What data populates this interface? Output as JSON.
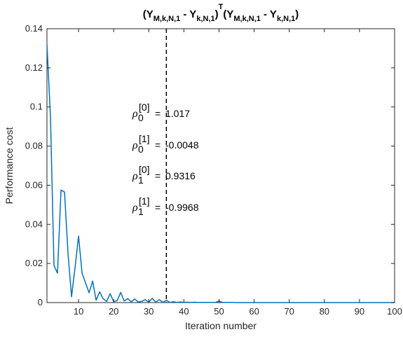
{
  "chart_data": {
    "type": "line",
    "title_parts": {
      "open": "(Y",
      "sub1": "M,k,N,1",
      "minus1": " - Y",
      "sub2": "k,N,1",
      "close1": ")",
      "sup": "T",
      "open2": "(Y",
      "sub3": "M,k,N,1",
      "minus2": " - Y",
      "sub4": "k,N,1",
      "close2": ")"
    },
    "xlabel": "Iteration number",
    "ylabel": "Performance cost",
    "xlim": [
      1,
      100
    ],
    "ylim": [
      0,
      0.14
    ],
    "xticks": [
      10,
      20,
      30,
      40,
      50,
      60,
      70,
      80,
      90,
      100
    ],
    "yticks": [
      0,
      0.02,
      0.04,
      0.06,
      0.08,
      0.1,
      0.12,
      0.14
    ],
    "ytick_labels": [
      "0",
      "0.02",
      "0.04",
      "0.06",
      "0.08",
      "0.1",
      "0.12",
      "0.14"
    ],
    "grid": false,
    "line_color": "#0072BD",
    "vline": {
      "x": 35,
      "style": "dashed",
      "color": "#000000"
    },
    "annotations": [
      {
        "sym": "ρ",
        "sub": "0",
        "sup": "[0]",
        "eq": "=",
        "value": "1.017"
      },
      {
        "sym": "ρ",
        "sub": "0",
        "sup": "[1]",
        "eq": "=",
        "value": "-0.0048"
      },
      {
        "sym": "ρ",
        "sub": "1",
        "sup": "[0]",
        "eq": "=",
        "value": "0.9316"
      },
      {
        "sym": "ρ",
        "sub": "1",
        "sup": "[1]",
        "eq": "=",
        "value": "-0.9968"
      }
    ],
    "series": [
      {
        "x": [
          1,
          2,
          3,
          4,
          5,
          6,
          7,
          8,
          9,
          10,
          11,
          12,
          13,
          14,
          15,
          16,
          17,
          18,
          19,
          20,
          21,
          22,
          23,
          24,
          25,
          26,
          27,
          28,
          29,
          30,
          31,
          32,
          33,
          34,
          35,
          36,
          37,
          38,
          39,
          40,
          41,
          42,
          43,
          44,
          45,
          46,
          47,
          48,
          49,
          50,
          51,
          52,
          53,
          54,
          55,
          56,
          57,
          58,
          59,
          60,
          61,
          62,
          63,
          64,
          65,
          66,
          67,
          68,
          69,
          70,
          71,
          72,
          73,
          74,
          75,
          76,
          77,
          78,
          79,
          80,
          81,
          82,
          83,
          84,
          85,
          86,
          87,
          88,
          89,
          90,
          91,
          92,
          93,
          94,
          95,
          96,
          97,
          98,
          99,
          100
        ],
        "y": [
          0.132,
          0.095,
          0.019,
          0.015,
          0.0575,
          0.0565,
          0.025,
          0.003,
          0.018,
          0.034,
          0.015,
          0.01,
          0.005,
          0.011,
          0.0012,
          0.0055,
          0.002,
          0.0006,
          0.0045,
          0.0005,
          0.001,
          0.0052,
          0.0008,
          0.002,
          0.0004,
          0.0018,
          0.0003,
          0.0006,
          0.0015,
          0.0002,
          0.0022,
          0.0002,
          0.0015,
          0.0001,
          0.0012,
          0.0001,
          0.0004,
          0.0001,
          0.0003,
          0.0001,
          0.0002,
          0.0001,
          0.0002,
          0.0001,
          0.0001,
          0.0001,
          0.0001,
          0.0001,
          0.0001,
          0.0008,
          0.0001,
          0.0001,
          0.0001,
          0.0001,
          0,
          0,
          0,
          0,
          0,
          0,
          0,
          0,
          0,
          0,
          0,
          0,
          0,
          0,
          0,
          0,
          0,
          0,
          0,
          0,
          0,
          0,
          0,
          0,
          0,
          0,
          0,
          0,
          0,
          0,
          0,
          0,
          0,
          0,
          0,
          0,
          0,
          0,
          0,
          0,
          0,
          0,
          0,
          0,
          0,
          0
        ]
      }
    ]
  }
}
